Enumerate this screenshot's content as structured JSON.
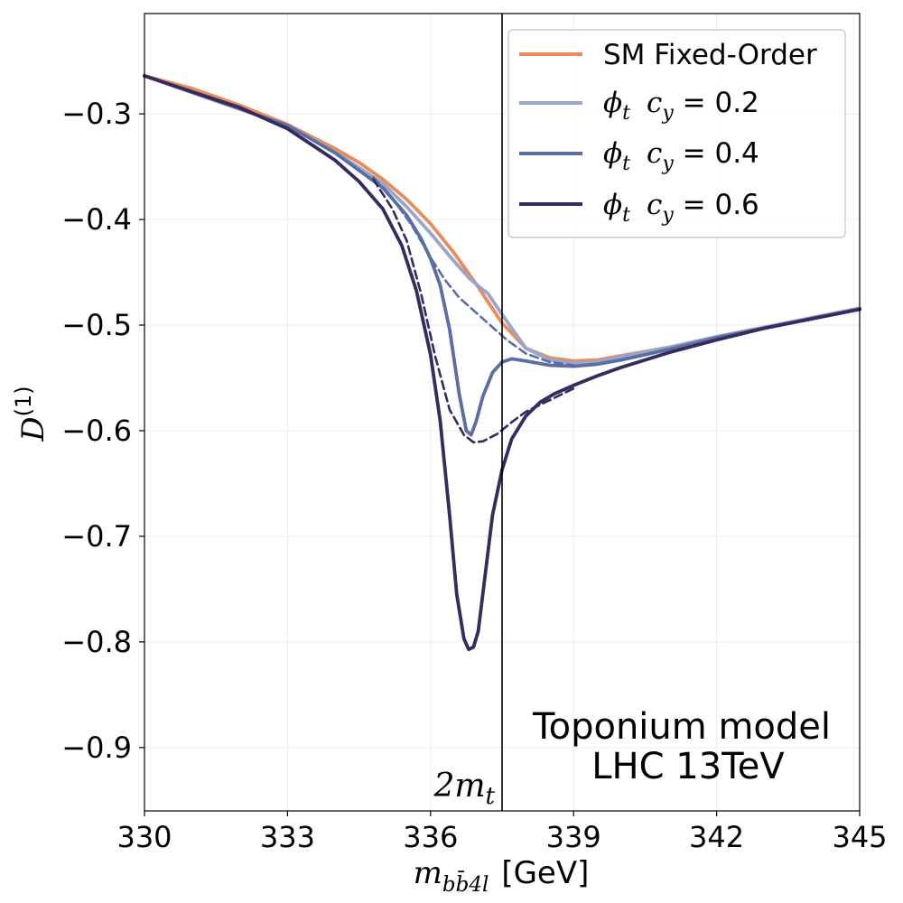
{
  "chart_data": {
    "type": "line",
    "xlabel_base": "m",
    "xlabel_sub": "bb̄4l",
    "xlabel_unit": "[GeV]",
    "ylabel_base": "D",
    "ylabel_sup": "(1)",
    "xlim": [
      330,
      345
    ],
    "ylim": [
      -0.96,
      -0.205
    ],
    "xticks": [
      330,
      333,
      336,
      339,
      342,
      345
    ],
    "xtick_labels": [
      "330",
      "333",
      "336",
      "339",
      "342",
      "345"
    ],
    "yticks": [
      -0.3,
      -0.4,
      -0.5,
      -0.6,
      -0.7,
      -0.8,
      -0.9
    ],
    "ytick_labels": [
      "−0.3",
      "−0.4",
      "−0.5",
      "−0.6",
      "−0.7",
      "−0.8",
      "−0.9"
    ],
    "grid": true,
    "legend_position": "top-right",
    "threshold": {
      "x": 337.5,
      "label_base": "2m",
      "label_sub": "t"
    },
    "annotation": {
      "line1": "Toponium model",
      "line2": "LHC 13TeV"
    },
    "colors": {
      "sm": "#E98B5A",
      "c02": "#99A6CC",
      "c04": "#5A6EA3",
      "c06": "#352B5F"
    },
    "series": [
      {
        "name": "SM Fixed-Order",
        "legend_label": "SM Fixed-Order",
        "color_key": "sm",
        "style": "solid",
        "in_legend": true,
        "x": [
          330,
          331,
          332,
          333,
          334,
          334.5,
          335,
          335.5,
          336,
          336.5,
          337,
          337.5,
          338,
          338.5,
          339,
          339.5,
          340,
          341,
          342,
          343,
          344,
          345
        ],
        "y": [
          -0.264,
          -0.276,
          -0.292,
          -0.31,
          -0.333,
          -0.346,
          -0.362,
          -0.381,
          -0.404,
          -0.432,
          -0.464,
          -0.498,
          -0.522,
          -0.531,
          -0.534,
          -0.533,
          -0.529,
          -0.521,
          -0.511,
          -0.502,
          -0.493,
          -0.484
        ]
      },
      {
        "name": "phi_t c_y=0.2",
        "legend_sym": "ϕ",
        "legend_sub": "t",
        "legend_cy": "c",
        "legend_cy_sub": "y",
        "legend_value": " = 0.2",
        "color_key": "c02",
        "style": "solid",
        "in_legend": true,
        "x": [
          330,
          333,
          334,
          335,
          335.5,
          336,
          336.5,
          336.8,
          337,
          337.2,
          337.5,
          338,
          338.5,
          339,
          339.5,
          340,
          341,
          342,
          343,
          344,
          345
        ],
        "y": [
          -0.264,
          -0.311,
          -0.336,
          -0.366,
          -0.388,
          -0.413,
          -0.44,
          -0.455,
          -0.463,
          -0.47,
          -0.49,
          -0.522,
          -0.533,
          -0.536,
          -0.535,
          -0.53,
          -0.521,
          -0.511,
          -0.502,
          -0.493,
          -0.484
        ]
      },
      {
        "name": "phi_t c_y=0.4",
        "legend_sym": "ϕ",
        "legend_sub": "t",
        "legend_cy": "c",
        "legend_cy_sub": "y",
        "legend_value": " = 0.4",
        "color_key": "c04",
        "style": "solid",
        "in_legend": true,
        "x": [
          330,
          333,
          334,
          335,
          335.5,
          335.8,
          336,
          336.2,
          336.4,
          336.6,
          336.75,
          336.85,
          336.95,
          337.1,
          337.3,
          337.5,
          337.7,
          338,
          338.5,
          339,
          339.5,
          340,
          341,
          342,
          343,
          344,
          345
        ],
        "y": [
          -0.264,
          -0.311,
          -0.337,
          -0.37,
          -0.396,
          -0.418,
          -0.437,
          -0.462,
          -0.504,
          -0.565,
          -0.6,
          -0.604,
          -0.592,
          -0.567,
          -0.545,
          -0.535,
          -0.532,
          -0.534,
          -0.538,
          -0.539,
          -0.537,
          -0.533,
          -0.523,
          -0.512,
          -0.503,
          -0.494,
          -0.485
        ]
      },
      {
        "name": "phi_t c_y=0.6",
        "legend_sym": "ϕ",
        "legend_sub": "t",
        "legend_cy": "c",
        "legend_cy_sub": "y",
        "legend_value": " = 0.6",
        "color_key": "c06",
        "style": "solid",
        "in_legend": true,
        "x": [
          330,
          332,
          333,
          334,
          334.5,
          335,
          335.4,
          335.7,
          336,
          336.2,
          336.4,
          336.55,
          336.7,
          336.8,
          336.9,
          337.0,
          337.15,
          337.3,
          337.5,
          337.7,
          338,
          338.3,
          338.6,
          339,
          339.5,
          340,
          341,
          342,
          343,
          344,
          345
        ],
        "y": [
          -0.264,
          -0.294,
          -0.314,
          -0.344,
          -0.364,
          -0.39,
          -0.425,
          -0.467,
          -0.528,
          -0.59,
          -0.68,
          -0.755,
          -0.797,
          -0.807,
          -0.805,
          -0.79,
          -0.735,
          -0.68,
          -0.637,
          -0.608,
          -0.586,
          -0.573,
          -0.565,
          -0.557,
          -0.548,
          -0.54,
          -0.526,
          -0.514,
          -0.503,
          -0.494,
          -0.485
        ]
      },
      {
        "name": "phi_t c_y=0.4 dashed",
        "color_key": "c04",
        "style": "dashed",
        "in_legend": false,
        "x": [
          334.8,
          335.2,
          335.6,
          336,
          336.3,
          336.6,
          337,
          337.3,
          337.6,
          338,
          338.5,
          339
        ],
        "y": [
          -0.36,
          -0.38,
          -0.405,
          -0.436,
          -0.457,
          -0.474,
          -0.49,
          -0.502,
          -0.514,
          -0.527,
          -0.535,
          -0.538
        ]
      },
      {
        "name": "phi_t c_y=0.6 dashed",
        "color_key": "c06",
        "style": "dashed",
        "in_legend": false,
        "x": [
          334.8,
          335.2,
          335.5,
          335.8,
          336.1,
          336.4,
          336.7,
          336.9,
          337.1,
          337.4,
          337.7,
          338,
          338.5,
          339
        ],
        "y": [
          -0.362,
          -0.39,
          -0.42,
          -0.47,
          -0.53,
          -0.58,
          -0.604,
          -0.611,
          -0.61,
          -0.603,
          -0.592,
          -0.582,
          -0.571,
          -0.56
        ]
      }
    ]
  }
}
